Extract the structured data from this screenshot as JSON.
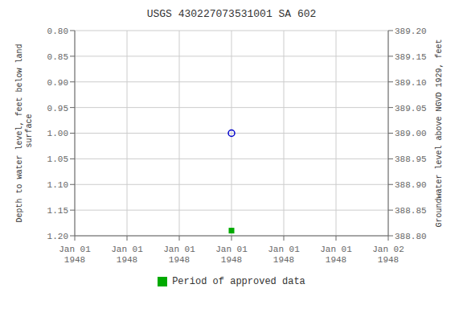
{
  "chart_data": {
    "type": "scatter",
    "title": "USGS 430227073531001 SA 602",
    "x_label": null,
    "y_label": "Depth to water level, feet below land\n surface",
    "y2_label": "Groundwater level above NGVD 1929, feet",
    "categories": [
      "Jan 01\n1948",
      "Jan 01\n1948",
      "Jan 01\n1948",
      "Jan 01\n1948",
      "Jan 01\n1948",
      "Jan 01\n1948",
      "Jan 02\n1948"
    ],
    "series": [
      {
        "color": "#0000cc",
        "marker": "circle",
        "values": [
          null,
          null,
          null,
          1.0,
          null,
          null,
          null
        ]
      },
      {
        "name": "Period of approved data",
        "color": "#00aa00",
        "marker": "square",
        "values": [
          null,
          null,
          null,
          1.19,
          null,
          null,
          null
        ]
      }
    ],
    "ylim": [
      1.2,
      0.8
    ],
    "yticks": [
      {
        "value": 0.8,
        "label": "0.80"
      },
      0.85,
      {
        "value": 0.9,
        "label": "0.90"
      },
      0.95,
      {
        "value": 1.0,
        "label": "1.00"
      },
      1.05,
      {
        "value": 1.1,
        "label": "1.10"
      },
      1.15,
      {
        "value": 1.2,
        "label": "1.20"
      }
    ],
    "y2lim": [
      388.8,
      389.2
    ],
    "y2ticks": [
      {
        "value": 389.2,
        "label": "389.20"
      },
      389.15,
      {
        "value": 389.1,
        "label": "389.10"
      },
      389.05,
      {
        "value": 389.0,
        "label": "389.00"
      },
      388.95,
      {
        "value": 388.9,
        "label": "388.90"
      },
      388.85,
      {
        "value": 388.8,
        "label": "388.80"
      }
    ],
    "grid": true
  }
}
